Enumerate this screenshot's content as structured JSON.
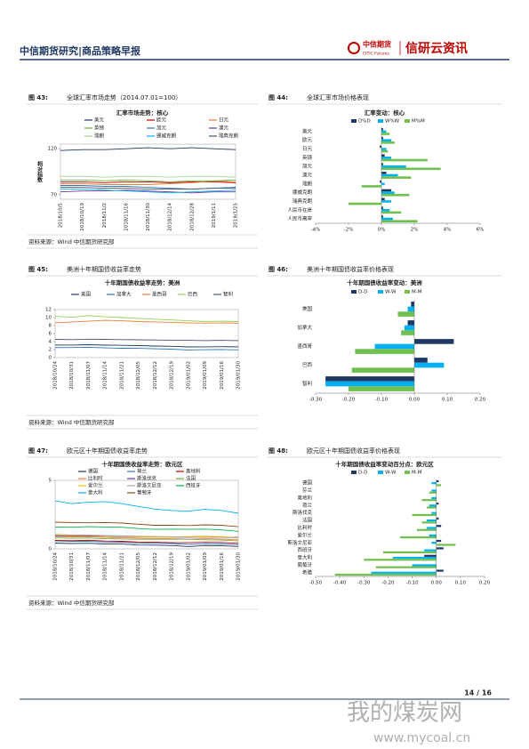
{
  "header": {
    "title": "中信期货研究|商品策略早报",
    "logo_cn": "中信期货",
    "logo_en": "CITIC Futures",
    "brand": "信研云资讯"
  },
  "figures": [
    {
      "label": "图 43:",
      "title": "全球汇率市场走势（2014.07.01=100）",
      "source": "资料来源：Wind  中信期货研究部",
      "chart": {
        "type": "line",
        "title": "汇率市场走势：核心",
        "y_label": "相对指数",
        "categories": [
          "2018/10/5",
          "2018/10/19",
          "2018/11/2",
          "2018/11/16",
          "2018/11/30",
          "2018/12/14",
          "2018/12/28",
          "2019/1/11",
          "2019/1/25"
        ],
        "ylim": [
          65,
          125
        ],
        "yticks": [
          70,
          120
        ],
        "series": [
          {
            "name": "美元",
            "color": "#1f3864",
            "values": [
              118,
              119,
              119,
              120,
              121,
              120,
              121,
              120,
              119
            ]
          },
          {
            "name": "欧元",
            "color": "#c00000",
            "values": [
              84,
              84,
              83,
              84,
              84,
              83,
              84,
              84,
              83
            ]
          },
          {
            "name": "日元",
            "color": "#ed7d31",
            "values": [
              82,
              82,
              81,
              81,
              81,
              82,
              83,
              85,
              84
            ]
          },
          {
            "name": "英镑",
            "color": "#70ad47",
            "values": [
              86,
              86,
              85,
              86,
              85,
              84,
              85,
              85,
              86
            ]
          },
          {
            "name": "加元",
            "color": "#2e75b6",
            "values": [
              80,
              80,
              79,
              79,
              78,
              77,
              76,
              77,
              78
            ]
          },
          {
            "name": "澳元",
            "color": "#7030a0",
            "values": [
              73,
              74,
              74,
              75,
              74,
              73,
              72,
              73,
              73
            ]
          },
          {
            "name": "瑞朗",
            "color": "#a9d18e",
            "values": [
              90,
              90,
              89,
              90,
              90,
              89,
              90,
              90,
              89
            ]
          },
          {
            "name": "挪威克朗",
            "color": "#00b0f0",
            "values": [
              76,
              76,
              75,
              74,
              73,
              72,
              73,
              74,
              75
            ]
          },
          {
            "name": "瑞典克朗",
            "color": "#44546a",
            "values": [
              78,
              78,
              77,
              77,
              76,
              76,
              76,
              77,
              77
            ]
          }
        ]
      }
    },
    {
      "label": "图 44:",
      "title": "全球汇率市场价格表现",
      "chart": {
        "type": "hbar",
        "title": "汇率变动：核心",
        "categories": [
          "美元",
          "欧元",
          "日元",
          "英镑",
          "加元",
          "澳元",
          "瑞朗",
          "挪威克朗",
          "瑞典克朗",
          "人民币在岸",
          "人民币离岸"
        ],
        "xlim": [
          -4,
          6
        ],
        "xticks": [
          {
            "value": -4,
            "label": "-4%"
          },
          {
            "value": -2,
            "label": "-2%"
          },
          {
            "value": 0,
            "label": "0%"
          },
          {
            "value": 2,
            "label": "2%"
          },
          {
            "value": 4,
            "label": "4%"
          },
          {
            "value": 6,
            "label": "6%"
          }
        ],
        "series": [
          {
            "name": "D%D",
            "color": "#1f3864",
            "values": [
              0.1,
              0.1,
              -0.1,
              0.2,
              0.1,
              0.3,
              -0.1,
              0.6,
              0.2,
              0.1,
              0.1
            ]
          },
          {
            "name": "W%W",
            "color": "#00b0f0",
            "values": [
              0.3,
              0.6,
              0.3,
              0.6,
              1.5,
              1.0,
              0.2,
              0.8,
              0.6,
              0.5,
              0.7
            ]
          },
          {
            "name": "M%M",
            "color": "#70c050",
            "values": [
              0.5,
              0.8,
              0.4,
              2.8,
              3.6,
              1.8,
              -1.2,
              1.7,
              -2.0,
              1.2,
              2.2
            ]
          }
        ]
      }
    },
    {
      "label": "图 45:",
      "title": "美洲十年期国债收益率走势",
      "source": "资料来源：Wind  中信期货研究部",
      "chart": {
        "type": "line",
        "title": "十年期国债收益率走势：美洲",
        "categories": [
          "2018/10/24",
          "2018/10/31",
          "2018/11/07",
          "2018/11/14",
          "2018/11/21",
          "2018/12/05",
          "2018/12/12",
          "2018/12/19",
          "2019/01/02",
          "2019/01/09",
          "2019/01/16",
          "2019/01/30"
        ],
        "ylim": [
          0,
          12
        ],
        "yticks": [
          0,
          2,
          4,
          6,
          8,
          10,
          12
        ],
        "series": [
          {
            "name": "美国",
            "color": "#1f3864",
            "values": [
              3.15,
              3.14,
              3.22,
              3.12,
              3.06,
              2.99,
              2.88,
              2.82,
              2.66,
              2.7,
              2.73,
              2.7
            ]
          },
          {
            "name": "加拿大",
            "color": "#2e75b6",
            "values": [
              2.5,
              2.51,
              2.57,
              2.42,
              2.33,
              2.32,
              2.2,
              2.12,
              1.92,
              1.97,
              1.99,
              1.94
            ]
          },
          {
            "name": "墨西哥",
            "color": "#ed7d31",
            "values": [
              8.7,
              8.9,
              9.1,
              9.3,
              9.2,
              9.0,
              8.9,
              8.8,
              8.7,
              8.6,
              8.7,
              8.6
            ]
          },
          {
            "name": "巴西",
            "color": "#92d050",
            "values": [
              10.3,
              10.1,
              10.5,
              10.2,
              10.0,
              9.8,
              9.6,
              9.4,
              9.2,
              9.0,
              9.1,
              9.0
            ]
          },
          {
            "name": "智利",
            "color": "#44546a",
            "values": [
              4.55,
              4.5,
              4.6,
              4.55,
              4.5,
              4.45,
              4.4,
              4.35,
              4.3,
              4.25,
              4.3,
              4.25
            ]
          }
        ]
      }
    },
    {
      "label": "图 46:",
      "title": "美洲十年期国债收益率价格表现",
      "chart": {
        "type": "hbar",
        "title": "十年期国债收益率变动：美洲",
        "categories": [
          "美国",
          "加拿大",
          "墨西哥",
          "巴西",
          "智利"
        ],
        "xlim": [
          -0.3,
          0.2
        ],
        "xticks": [
          {
            "value": -0.3,
            "label": "-0.30"
          },
          {
            "value": -0.2,
            "label": "-0.20"
          },
          {
            "value": -0.1,
            "label": "-0.10"
          },
          {
            "value": 0,
            "label": "0.00"
          },
          {
            "value": 0.1,
            "label": "0.10"
          },
          {
            "value": 0.2,
            "label": "0.20"
          }
        ],
        "series": [
          {
            "name": "D-D",
            "color": "#1f3864",
            "values": [
              -0.01,
              -0.02,
              0.12,
              0.04,
              -0.27
            ]
          },
          {
            "name": "W-W",
            "color": "#00b0f0",
            "values": [
              -0.02,
              -0.03,
              -0.12,
              0.09,
              -0.27
            ]
          },
          {
            "name": "M-M",
            "color": "#70c050",
            "values": [
              -0.05,
              -0.04,
              -0.18,
              -0.19,
              -0.2
            ]
          }
        ]
      }
    },
    {
      "label": "图 47:",
      "title": "欧元区十年期国债收益率走势",
      "source": "资料来源：Wind  中信期货研究部",
      "chart": {
        "type": "line",
        "title": "十年期国债收益率走势：欧元区",
        "categories": [
          "2018/10/24",
          "2018/10/31",
          "2018/11/07",
          "2018/11/14",
          "2018/11/21",
          "2018/12/05",
          "2018/12/12",
          "2018/12/19",
          "2019/01/02",
          "2019/01/09",
          "2019/01/16",
          "2019/01/30"
        ],
        "ylim": [
          0,
          5
        ],
        "yticks": [
          0,
          5
        ],
        "series": [
          {
            "name": "德国",
            "color": "#1f3864",
            "values": [
              0.42,
              0.39,
              0.41,
              0.36,
              0.35,
              0.28,
              0.27,
              0.24,
              0.17,
              0.24,
              0.23,
              0.17
            ]
          },
          {
            "name": "荷兰",
            "color": "#2e75b6",
            "values": [
              0.58,
              0.55,
              0.56,
              0.5,
              0.49,
              0.43,
              0.41,
              0.39,
              0.32,
              0.37,
              0.36,
              0.3
            ]
          },
          {
            "name": "奥地利",
            "color": "#c00000",
            "values": [
              0.62,
              0.6,
              0.63,
              0.57,
              0.55,
              0.5,
              0.48,
              0.45,
              0.45,
              0.48,
              0.47,
              0.4
            ]
          },
          {
            "name": "比利时",
            "color": "#ed7d31",
            "values": [
              0.9,
              0.88,
              0.89,
              0.83,
              0.82,
              0.78,
              0.76,
              0.74,
              0.7,
              0.74,
              0.72,
              0.66
            ]
          },
          {
            "name": "斯洛伐克",
            "color": "#7030a0",
            "values": [
              0.95,
              0.93,
              0.95,
              0.92,
              0.9,
              0.88,
              0.87,
              0.86,
              0.85,
              0.86,
              0.85,
              0.84
            ]
          },
          {
            "name": "法国",
            "color": "#70ad47",
            "values": [
              0.8,
              0.77,
              0.79,
              0.74,
              0.72,
              0.7,
              0.7,
              0.7,
              0.7,
              0.66,
              0.64,
              0.58
            ]
          },
          {
            "name": "爱尔兰",
            "color": "#ffc000",
            "values": [
              1.0,
              0.98,
              0.99,
              0.95,
              0.93,
              0.88,
              0.86,
              0.84,
              0.9,
              0.92,
              0.89,
              0.82
            ]
          },
          {
            "name": "斯洛文尼亚",
            "color": "#a5a5a5",
            "values": [
              1.05,
              1.02,
              1.0,
              0.98,
              0.95,
              0.92,
              0.9,
              0.88,
              0.86,
              0.85,
              0.84,
              0.8
            ]
          },
          {
            "name": "西班牙",
            "color": "#00b050",
            "values": [
              1.6,
              1.58,
              1.62,
              1.6,
              1.58,
              1.48,
              1.42,
              1.44,
              1.42,
              1.44,
              1.38,
              1.28
            ]
          },
          {
            "name": "意大利",
            "color": "#00b0f0",
            "values": [
              3.5,
              3.3,
              3.4,
              3.45,
              3.3,
              3.1,
              2.9,
              2.8,
              2.75,
              2.88,
              2.8,
              2.6
            ]
          },
          {
            "name": "葡萄牙",
            "color": "#8b4513",
            "values": [
              1.95,
              1.92,
              1.9,
              1.92,
              1.88,
              1.8,
              1.72,
              1.73,
              1.7,
              1.75,
              1.72,
              1.62
            ]
          }
        ]
      }
    },
    {
      "label": "图 48:",
      "title": "欧元区十年期国债收益率价格表现",
      "chart": {
        "type": "hbar",
        "title": "十年期国债收益率变动百分点：欧元区",
        "categories": [
          "德国",
          "芬兰",
          "奥地利",
          "荷兰",
          "斯洛伐克",
          "法国",
          "比利时",
          "爱尔兰",
          "斯洛文尼亚",
          "西班牙",
          "意大利",
          "葡萄牙",
          "希腊"
        ],
        "xlim": [
          -0.5,
          0.2
        ],
        "xticks": [
          {
            "value": -0.5,
            "label": "-0.50"
          },
          {
            "value": -0.4,
            "label": "-0.40"
          },
          {
            "value": -0.3,
            "label": "-0.30"
          },
          {
            "value": -0.2,
            "label": "-0.20"
          },
          {
            "value": -0.1,
            "label": "-0.10"
          },
          {
            "value": 0,
            "label": "0.00"
          },
          {
            "value": 0.1,
            "label": "0.10"
          },
          {
            "value": 0.2,
            "label": "0.20"
          }
        ],
        "series": [
          {
            "name": "D-D",
            "color": "#1f3864",
            "values": [
              0.01,
              0.0,
              0.0,
              0.01,
              0.0,
              0.01,
              0.02,
              0.0,
              0.02,
              0.03,
              -0.05,
              0.0,
              0.03
            ]
          },
          {
            "name": "W-W",
            "color": "#00b0f0",
            "values": [
              -0.02,
              -0.02,
              -0.02,
              -0.03,
              -0.02,
              -0.04,
              -0.04,
              -0.03,
              -0.02,
              -0.05,
              -0.18,
              -0.1,
              -0.27
            ]
          },
          {
            "name": "M-M",
            "color": "#70c050",
            "values": [
              0.02,
              -0.03,
              -0.06,
              -0.04,
              -0.1,
              -0.06,
              -0.08,
              -0.15,
              0.08,
              -0.22,
              -0.3,
              -0.25,
              -0.42
            ]
          }
        ]
      }
    }
  ],
  "footer": {
    "page": "14 / 16"
  },
  "watermark": {
    "cn": "我的煤炭网",
    "url": "www.mycoal.cn"
  }
}
